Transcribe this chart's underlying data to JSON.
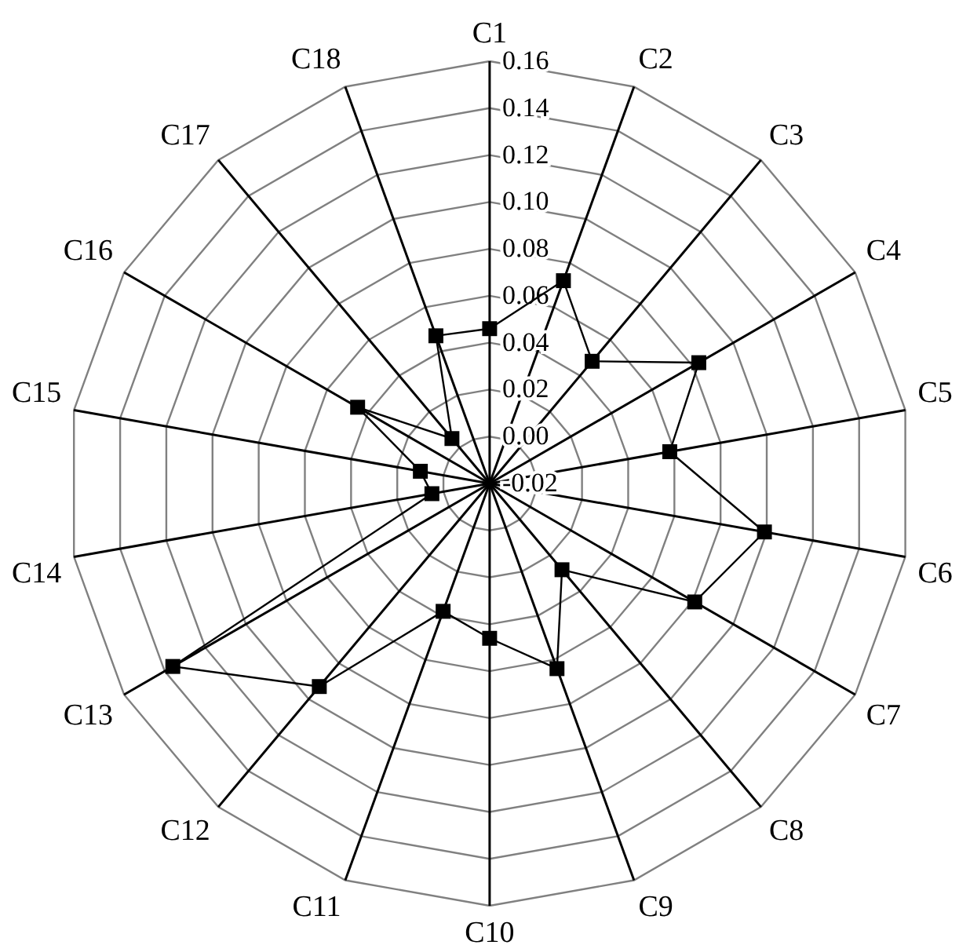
{
  "chart_data": {
    "type": "radar",
    "categories": [
      "C1",
      "C2",
      "C3",
      "C4",
      "C5",
      "C6",
      "C7",
      "C8",
      "C9",
      "C10",
      "C11",
      "C12",
      "C13",
      "C14",
      "C15",
      "C16",
      "C17",
      "C18"
    ],
    "series": [
      {
        "color": "#000000",
        "values": [
          0.046,
          0.072,
          0.048,
          0.083,
          0.058,
          0.099,
          0.081,
          0.028,
          0.064,
          0.046,
          0.038,
          0.093,
          0.136,
          0.005,
          0.01,
          0.045,
          0.005,
          0.047
        ]
      }
    ],
    "ylim": [
      -0.02,
      0.16
    ],
    "yticks": [
      -0.02,
      {
        "value": 0.0,
        "label": "0.00"
      },
      0.02,
      0.04,
      0.06,
      0.08,
      {
        "value": 0.1,
        "label": "0.10"
      },
      0.12,
      0.14,
      0.16
    ],
    "marker": "square",
    "line_style": "solid",
    "grid": true
  }
}
